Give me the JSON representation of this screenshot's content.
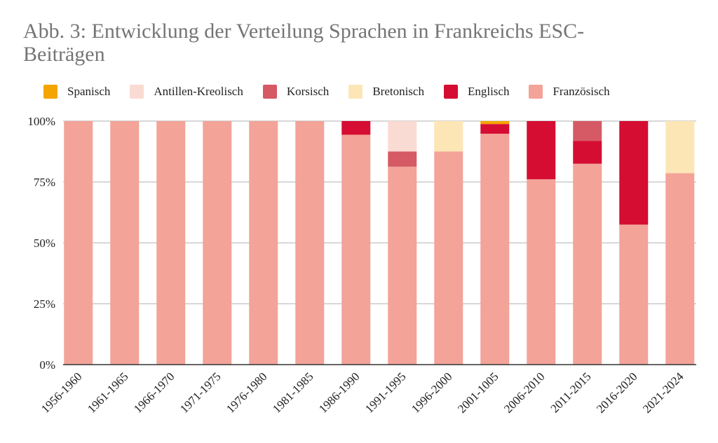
{
  "chart_data": {
    "type": "bar",
    "stacked": true,
    "title": "Abb. 3: Entwicklung der Verteilung Sprachen in Frankreichs ESC-Beiträgen",
    "xlabel": "",
    "ylabel": "",
    "ylim": [
      0,
      100
    ],
    "y_ticks": [
      "0%",
      "25%",
      "50%",
      "75%",
      "100%"
    ],
    "grid": true,
    "legend_position": "top",
    "categories": [
      "1956-1960",
      "1961-1965",
      "1966-1970",
      "1971-1975",
      "1976-1980",
      "1981-1985",
      "1986-1990",
      "1991-1995",
      "1996-2000",
      "2001-1005",
      "2006-2010",
      "2011-2015",
      "2016-2020",
      "2021-2024"
    ],
    "series": [
      {
        "name": "Französisch",
        "color": "#f3a398",
        "values": [
          100,
          100,
          100,
          100,
          100,
          100,
          94.4,
          81.25,
          87.5,
          94.8,
          76.1,
          82.5,
          57.5,
          78.6
        ]
      },
      {
        "name": "Englisch",
        "color": "#d50d32",
        "values": [
          0,
          0,
          0,
          0,
          0,
          0,
          5.6,
          0,
          0,
          4.0,
          23.9,
          9.4,
          42.5,
          0
        ]
      },
      {
        "name": "Bretonisch",
        "color": "#fde6b6",
        "values": [
          0,
          0,
          0,
          0,
          0,
          0,
          0,
          0,
          12.5,
          0,
          0,
          0,
          0,
          21.4
        ]
      },
      {
        "name": "Korsisch",
        "color": "#d55a66",
        "values": [
          0,
          0,
          0,
          0,
          0,
          0,
          0,
          6.25,
          0,
          0,
          0,
          8.1,
          0,
          0
        ]
      },
      {
        "name": "Antillen-Kreolisch",
        "color": "#fadbd3",
        "values": [
          0,
          0,
          0,
          0,
          0,
          0,
          0,
          12.5,
          0,
          0,
          0,
          0,
          0,
          0
        ]
      },
      {
        "name": "Spanisch",
        "color": "#f5a500",
        "values": [
          0,
          0,
          0,
          0,
          0,
          0,
          0,
          0,
          0,
          1.2,
          0,
          0,
          0,
          0
        ]
      }
    ],
    "legend_order": [
      "Spanisch",
      "Antillen-Kreolisch",
      "Korsisch",
      "Bretonisch",
      "Englisch",
      "Französisch"
    ]
  }
}
